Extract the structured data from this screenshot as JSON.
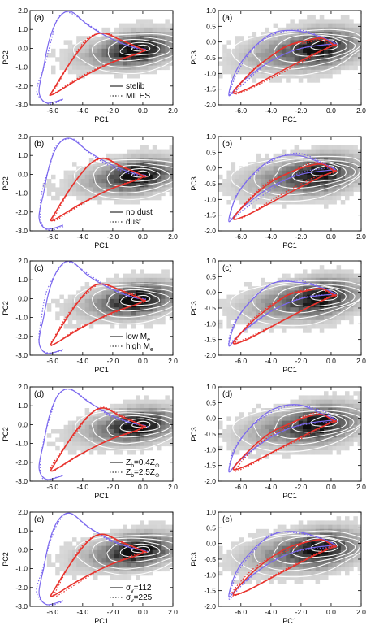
{
  "chart_data": [
    {
      "panel": "(a)",
      "type": "scatter",
      "xlabel": "PC1",
      "ylabel": "PC2",
      "xlim": [
        -7.5,
        2.0
      ],
      "ylim": [
        -3.0,
        2.0
      ],
      "xticks": [
        "-6.0",
        "-4.0",
        "-2.0",
        "0.0",
        "2.0"
      ],
      "yticks": [
        "2.0",
        "1.0",
        "0.0",
        "-1.0",
        "-2.0",
        "-3.0"
      ],
      "legend": [
        {
          "style": "solid",
          "label": "stelib"
        },
        {
          "style": "dotted",
          "label": "MILES"
        }
      ]
    },
    {
      "panel": "(a)",
      "type": "scatter",
      "xlabel": "PC1",
      "ylabel": "PC3",
      "xlim": [
        -7.5,
        2.0
      ],
      "ylim": [
        -2.0,
        1.0
      ],
      "xticks": [
        "-6.0",
        "-4.0",
        "-2.0",
        "0.0",
        "2.0"
      ],
      "yticks": [
        "1.0",
        "0.5",
        "0.0",
        "-0.5",
        "-1.0",
        "-1.5",
        "-2.0"
      ]
    },
    {
      "panel": "(b)",
      "type": "scatter",
      "xlabel": "PC1",
      "ylabel": "PC2",
      "xlim": [
        -7.5,
        2.0
      ],
      "ylim": [
        -3.0,
        2.0
      ],
      "xticks": [
        "-6.0",
        "-4.0",
        "-2.0",
        "0.0",
        "2.0"
      ],
      "yticks": [
        "2.0",
        "1.0",
        "0.0",
        "-1.0",
        "-2.0",
        "-3.0"
      ],
      "legend": [
        {
          "style": "solid",
          "label": "no dust"
        },
        {
          "style": "dotted",
          "label": "dust"
        }
      ]
    },
    {
      "panel": "(b)",
      "type": "scatter",
      "xlabel": "PC1",
      "ylabel": "PC3",
      "xlim": [
        -7.5,
        2.0
      ],
      "ylim": [
        -2.0,
        1.0
      ],
      "xticks": [
        "-6.0",
        "-4.0",
        "-2.0",
        "0.0",
        "2.0"
      ],
      "yticks": [
        "1.0",
        "0.5",
        "0.0",
        "-0.5",
        "-1.0",
        "-1.5",
        "-2.0"
      ]
    },
    {
      "panel": "(c)",
      "type": "scatter",
      "xlabel": "PC1",
      "ylabel": "PC2",
      "xlim": [
        -7.5,
        2.0
      ],
      "ylim": [
        -3.0,
        2.0
      ],
      "xticks": [
        "-6.0",
        "-4.0",
        "-2.0",
        "0.0",
        "2.0"
      ],
      "yticks": [
        "2.0",
        "1.0",
        "0.0",
        "-1.0",
        "-2.0",
        "-3.0"
      ],
      "legend": [
        {
          "style": "solid",
          "label": "low M",
          "sub": "e"
        },
        {
          "style": "dotted",
          "label": "high M",
          "sub": "e"
        }
      ]
    },
    {
      "panel": "(c)",
      "type": "scatter",
      "xlabel": "PC1",
      "ylabel": "PC3",
      "xlim": [
        -7.5,
        2.0
      ],
      "ylim": [
        -2.0,
        1.0
      ],
      "xticks": [
        "-6.0",
        "-4.0",
        "-2.0",
        "0.0",
        "2.0"
      ],
      "yticks": [
        "1.0",
        "0.5",
        "0.0",
        "-0.5",
        "-1.0",
        "-1.5",
        "-2.0"
      ]
    },
    {
      "panel": "(d)",
      "type": "scatter",
      "xlabel": "PC1",
      "ylabel": "PC2",
      "xlim": [
        -7.5,
        2.0
      ],
      "ylim": [
        -3.0,
        2.0
      ],
      "xticks": [
        "-6.0",
        "-4.0",
        "-2.0",
        "0.0",
        "2.0"
      ],
      "yticks": [
        "2.0",
        "1.0",
        "0.0",
        "-1.0",
        "-2.0",
        "-3.0"
      ],
      "legend": [
        {
          "style": "solid",
          "label": "Z",
          "sub": "b",
          "rest": "=0.4Z",
          "sym": "⊙"
        },
        {
          "style": "dotted",
          "label": "Z",
          "sub": "b",
          "rest": "=2.5Z",
          "sym": "⊙"
        }
      ]
    },
    {
      "panel": "(d)",
      "type": "scatter",
      "xlabel": "PC1",
      "ylabel": "PC3",
      "xlim": [
        -7.5,
        2.0
      ],
      "ylim": [
        -2.0,
        1.0
      ],
      "xticks": [
        "-6.0",
        "-4.0",
        "-2.0",
        "0.0",
        "2.0"
      ],
      "yticks": [
        "1.0",
        "0.5",
        "0.0",
        "-0.5",
        "-1.0",
        "-1.5",
        "-2.0"
      ]
    },
    {
      "panel": "(e)",
      "type": "scatter",
      "xlabel": "PC1",
      "ylabel": "PC2",
      "xlim": [
        -7.5,
        2.0
      ],
      "ylim": [
        -3.0,
        2.0
      ],
      "xticks": [
        "-6.0",
        "-4.0",
        "-2.0",
        "0.0",
        "2.0"
      ],
      "yticks": [
        "2.0",
        "1.0",
        "0.0",
        "-1.0",
        "-2.0",
        "-3.0"
      ],
      "legend": [
        {
          "style": "solid",
          "label": "σ",
          "sub": "v",
          "rest": "=112"
        },
        {
          "style": "dotted",
          "label": "σ",
          "sub": "v",
          "rest": "=225"
        }
      ]
    },
    {
      "panel": "(e)",
      "type": "scatter",
      "xlabel": "PC1",
      "ylabel": "PC3",
      "xlim": [
        -7.5,
        2.0
      ],
      "ylim": [
        -2.0,
        1.0
      ],
      "xticks": [
        "-6.0",
        "-4.0",
        "-2.0",
        "0.0",
        "2.0"
      ],
      "yticks": [
        "1.0",
        "0.5",
        "0.0",
        "-0.5",
        "-1.0",
        "-1.5",
        "-2.0"
      ]
    }
  ],
  "colors": {
    "blue_track": "#7b68ee",
    "red_track": "#e8322c",
    "data_dark": "#111111",
    "data_light": "#d8d8d8",
    "contour": "#ffffff"
  }
}
